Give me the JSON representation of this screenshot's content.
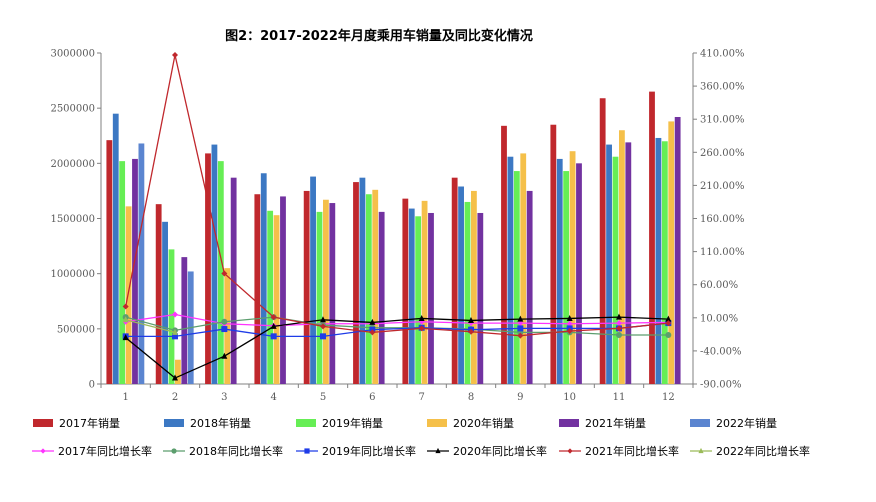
{
  "chart_data": {
    "type": "bar",
    "title": "图2：2017-2022年月度乘用车销量及同比变化情况",
    "categories": [
      "1",
      "2",
      "3",
      "4",
      "5",
      "6",
      "7",
      "8",
      "9",
      "10",
      "11",
      "12"
    ],
    "left_axis": {
      "ylim": [
        0,
        3000000
      ],
      "ticks": [
        "0",
        "500000",
        "1000000",
        "1500000",
        "2000000",
        "2500000",
        "3000000"
      ]
    },
    "right_axis": {
      "ylim": [
        -90,
        410
      ],
      "ticks": [
        "-90.00%",
        "-40.00%",
        "10.00%",
        "60.00%",
        "110.00%",
        "160.00%",
        "210.00%",
        "260.00%",
        "310.00%",
        "360.00%",
        "410.00%"
      ]
    },
    "series": [
      {
        "name": "2017年销量",
        "type": "bar",
        "axis": "left",
        "color": "#C0282D",
        "values": [
          2210000,
          1630000,
          2090000,
          1720000,
          1750000,
          1830000,
          1680000,
          1870000,
          2340000,
          2350000,
          2590000,
          2650000
        ]
      },
      {
        "name": "2018年销量",
        "type": "bar",
        "axis": "left",
        "color": "#3C78C3",
        "values": [
          2450000,
          1470000,
          2170000,
          1910000,
          1880000,
          1870000,
          1590000,
          1790000,
          2060000,
          2040000,
          2170000,
          2230000
        ]
      },
      {
        "name": "2019年销量",
        "type": "bar",
        "axis": "left",
        "color": "#66EE55",
        "values": [
          2020000,
          1220000,
          2020000,
          1570000,
          1560000,
          1720000,
          1520000,
          1650000,
          1930000,
          1930000,
          2060000,
          2200000
        ]
      },
      {
        "name": "2020年销量",
        "type": "bar",
        "axis": "left",
        "color": "#F5C04A",
        "values": [
          1610000,
          220000,
          1050000,
          1530000,
          1670000,
          1760000,
          1660000,
          1750000,
          2090000,
          2110000,
          2300000,
          2380000
        ]
      },
      {
        "name": "2021年销量",
        "type": "bar",
        "axis": "left",
        "color": "#7232A0",
        "values": [
          2040000,
          1150000,
          1870000,
          1700000,
          1640000,
          1560000,
          1550000,
          1550000,
          1750000,
          2000000,
          2190000,
          2420000
        ]
      },
      {
        "name": "2022年销量",
        "type": "bar",
        "axis": "left",
        "color": "#5B85D0",
        "values": [
          2180000,
          1020000,
          null,
          null,
          null,
          null,
          null,
          null,
          null,
          null,
          null,
          null
        ]
      },
      {
        "name": "2017年同比增长率",
        "type": "line",
        "axis": "right",
        "color": "#FF33FF",
        "marker": "diamond",
        "values": [
          4,
          15,
          1,
          -2,
          1,
          1,
          4,
          2,
          2,
          1,
          2,
          3
        ]
      },
      {
        "name": "2018年同比增长率",
        "type": "line",
        "axis": "right",
        "color": "#5C9E6E",
        "marker": "circle",
        "values": [
          11,
          -9,
          4,
          11,
          -1,
          -5,
          -5,
          -7,
          -12,
          -12,
          -16,
          -16
        ]
      },
      {
        "name": "2019年同比增长率",
        "type": "line",
        "axis": "right",
        "color": "#1F3CE8",
        "marker": "square",
        "values": [
          -18,
          -18,
          -7,
          -18,
          -18,
          -8,
          -5,
          -8,
          -6,
          -6,
          -6,
          2
        ]
      },
      {
        "name": "2020年同比增长率",
        "type": "line",
        "axis": "right",
        "color": "#000000",
        "marker": "triangle",
        "values": [
          -20,
          -81,
          -48,
          -3,
          7,
          3,
          9,
          6,
          8,
          9,
          11,
          8
        ]
      },
      {
        "name": "2021年同比增长率",
        "type": "line",
        "axis": "right",
        "color": "#C0282D",
        "marker": "diamond",
        "values": [
          27,
          407,
          77,
          11,
          -3,
          -12,
          -6,
          -11,
          -17,
          -10,
          -6,
          2
        ]
      },
      {
        "name": "2022年同比增长率",
        "type": "line",
        "axis": "right",
        "color": "#9BBB59",
        "marker": "triangle",
        "values": [
          7,
          -12,
          null,
          null,
          null,
          null,
          null,
          null,
          null,
          null,
          null,
          null
        ]
      }
    ]
  }
}
